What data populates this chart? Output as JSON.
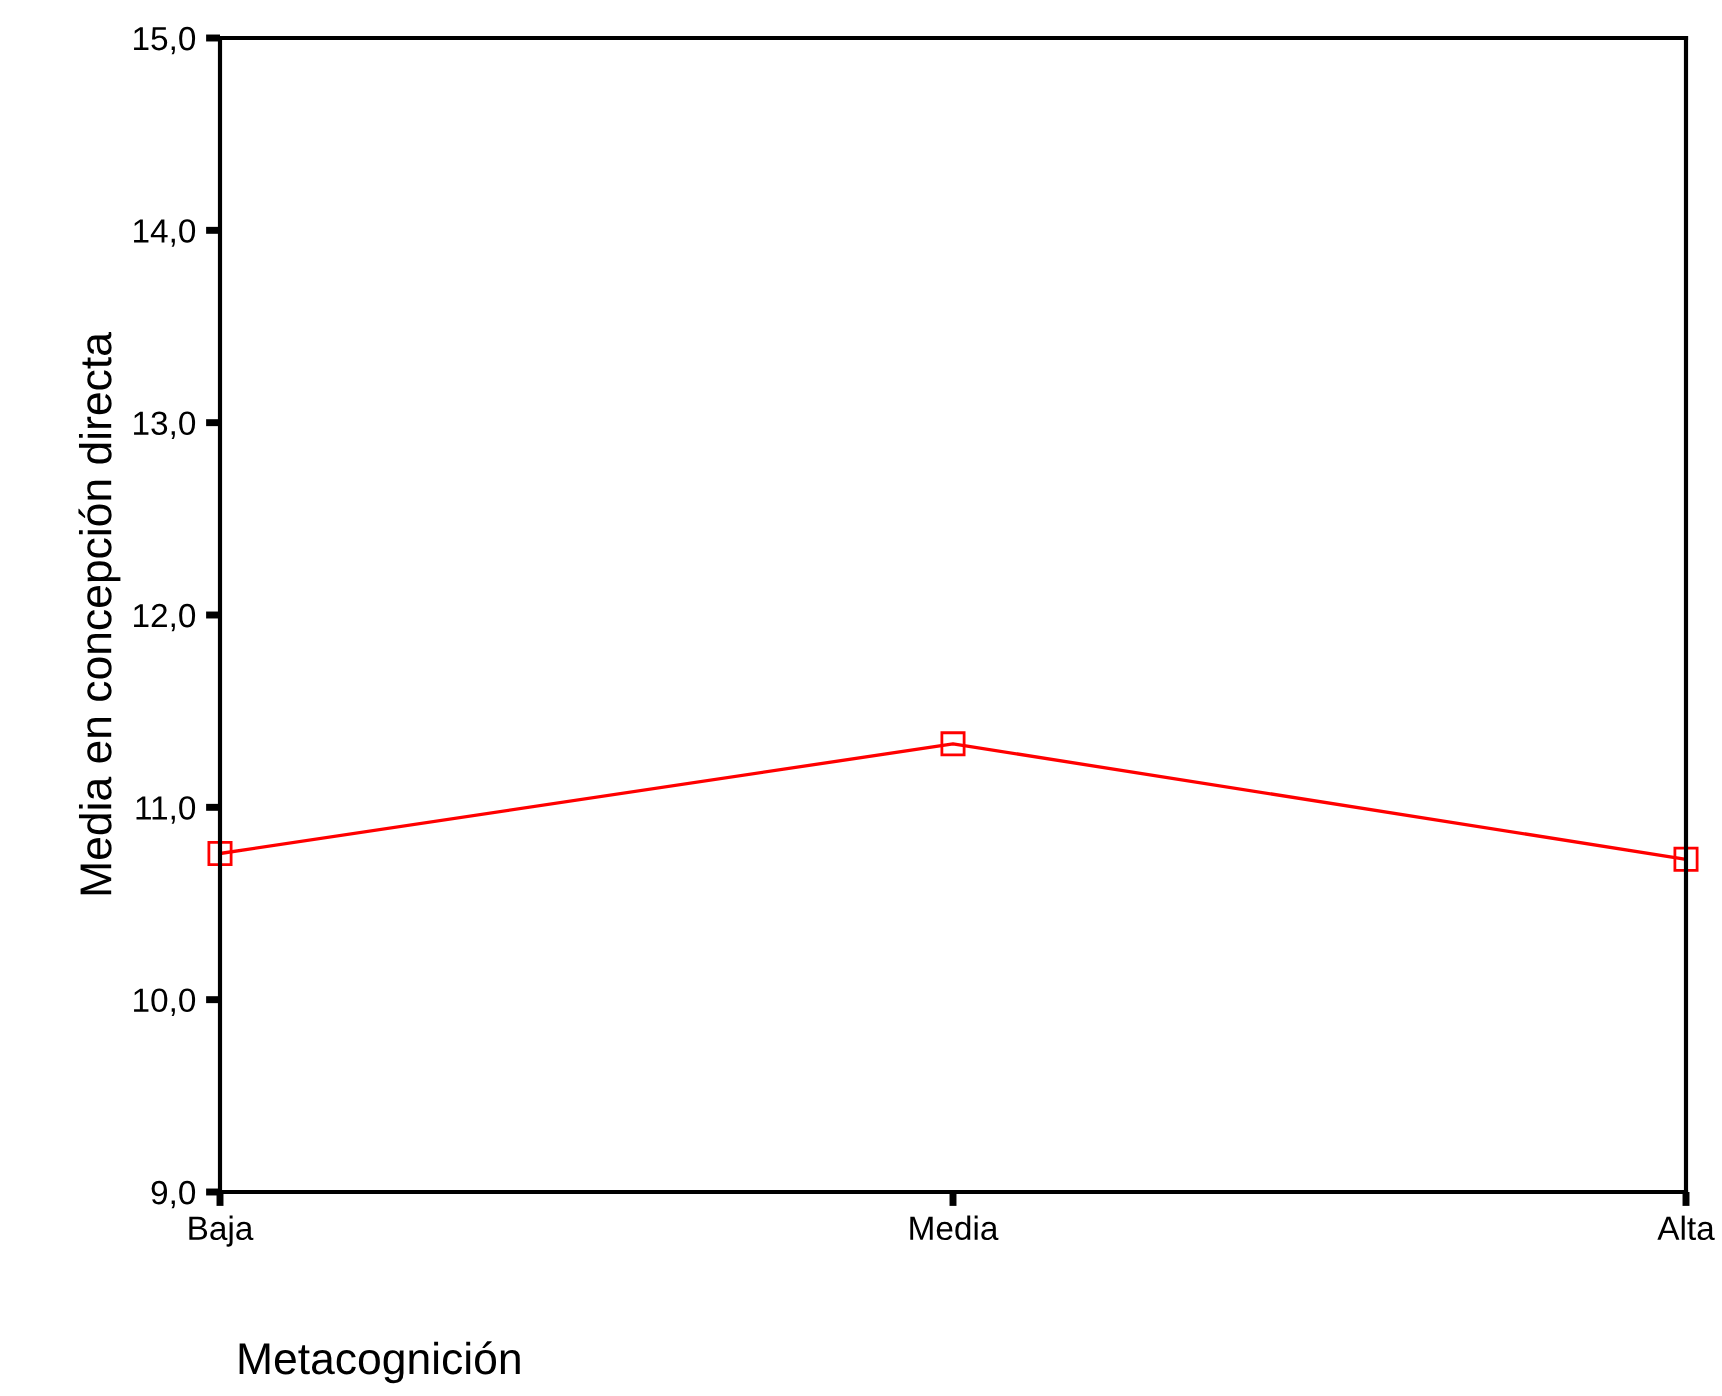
{
  "chart_data": {
    "type": "line",
    "xlabel": "Metacognición",
    "ylabel": "Media en concepción directa",
    "categories": [
      "Baja",
      "Media",
      "Alta"
    ],
    "series": [
      {
        "color": "#ff0000",
        "values": [
          10.76,
          11.33,
          10.73
        ]
      }
    ],
    "ylim": [
      9,
      15
    ],
    "yticks": [
      {
        "value": 9,
        "label": "9,0"
      },
      {
        "value": 10,
        "label": "10,0"
      },
      {
        "value": 11,
        "label": "11,0"
      },
      {
        "value": 12,
        "label": "12,0"
      },
      {
        "value": 13,
        "label": "13,0"
      },
      {
        "value": 14,
        "label": "14,0"
      },
      {
        "value": 15,
        "label": "15,0"
      }
    ],
    "grid": false,
    "legend": false,
    "marker": "square",
    "line_style": "solid"
  }
}
